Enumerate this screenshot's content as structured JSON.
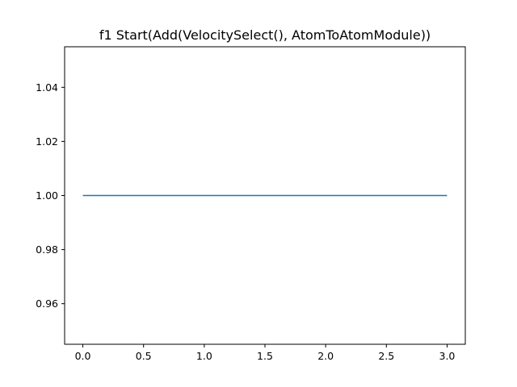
{
  "chart_data": {
    "type": "line",
    "title": "f1 Start(Add(VelocitySelect(), AtomToAtomModule))",
    "xlabel": "",
    "ylabel": "",
    "xlim": [
      -0.15,
      3.15
    ],
    "ylim": [
      0.945,
      1.055
    ],
    "x_ticks": [
      {
        "value": 0.0,
        "label": "0.0"
      },
      {
        "value": 0.5,
        "label": "0.5"
      },
      {
        "value": 1.0,
        "label": "1.0"
      },
      {
        "value": 1.5,
        "label": "1.5"
      },
      {
        "value": 2.0,
        "label": "2.0"
      },
      {
        "value": 2.5,
        "label": "2.5"
      },
      {
        "value": 3.0,
        "label": "3.0"
      }
    ],
    "y_ticks": [
      {
        "value": 0.96,
        "label": "0.96"
      },
      {
        "value": 0.98,
        "label": "0.98"
      },
      {
        "value": 1.0,
        "label": "1.00"
      },
      {
        "value": 1.02,
        "label": "1.02"
      },
      {
        "value": 1.04,
        "label": "1.04"
      }
    ],
    "grid": false,
    "series": [
      {
        "color": "#1f77b4",
        "x": [
          0,
          1,
          2,
          3
        ],
        "y": [
          1.0,
          1.0,
          1.0,
          1.0
        ]
      }
    ]
  }
}
